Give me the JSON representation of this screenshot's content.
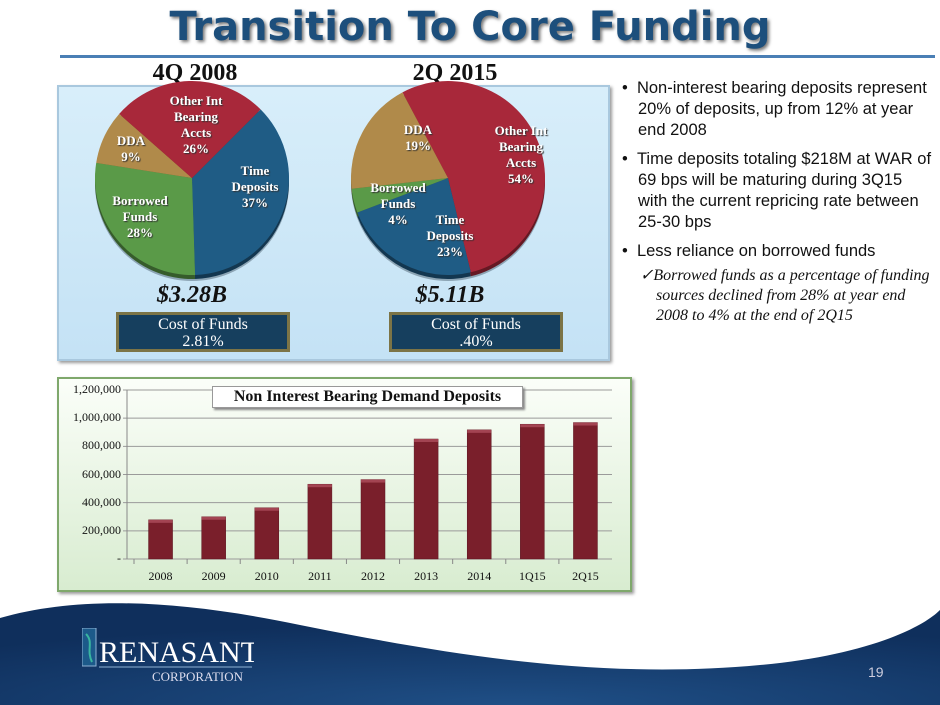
{
  "slide": {
    "title": "Transition To Core Funding",
    "page_number": "19"
  },
  "logo": {
    "name": "RENASANT",
    "sub": "CORPORATION"
  },
  "chart_data": [
    {
      "type": "pie",
      "title": "4Q 2008",
      "total": "$3.28B",
      "cost_of_funds_label": "Cost of Funds",
      "cost_of_funds_value": "2.81%",
      "slices": [
        {
          "label": "Time Deposits",
          "pct_label": "37%",
          "value": 37,
          "color": "#1f5c85"
        },
        {
          "label": "Borrowed Funds",
          "pct_label": "28%",
          "value": 28,
          "color": "#5a9a48"
        },
        {
          "label": "DDA",
          "pct_label": "9%",
          "value": 9,
          "color": "#b08a4a"
        },
        {
          "label": "Other Int Bearing Accts",
          "pct_label": "26%",
          "value": 26,
          "color": "#a8283a"
        }
      ]
    },
    {
      "type": "pie",
      "title": "2Q 2015",
      "total": "$5.11B",
      "cost_of_funds_label": "Cost of Funds",
      "cost_of_funds_value": ".40%",
      "slices": [
        {
          "label": "Other Int Bearing Accts",
          "pct_label": "54%",
          "value": 54,
          "color": "#a8283a"
        },
        {
          "label": "Time Deposits",
          "pct_label": "23%",
          "value": 23,
          "color": "#1f5c85"
        },
        {
          "label": "Borrowed Funds",
          "pct_label": "4%",
          "value": 4,
          "color": "#5a9a48"
        },
        {
          "label": "DDA",
          "pct_label": "19%",
          "value": 19,
          "color": "#b08a4a"
        }
      ]
    },
    {
      "type": "bar",
      "title": "Non Interest Bearing Demand Deposits",
      "categories": [
        "2008",
        "2009",
        "2010",
        "2011",
        "2012",
        "2013",
        "2014",
        "1Q15",
        "2Q15"
      ],
      "values": [
        278000,
        300000,
        364000,
        531000,
        564000,
        852000,
        917000,
        957000,
        969000
      ],
      "ylim": [
        0,
        1200000
      ],
      "yticks": [
        "-",
        "200,000",
        "400,000",
        "600,000",
        "800,000",
        "1,000,000",
        "1,200,000"
      ],
      "bar_color": "#7a1f2b",
      "grid": true
    }
  ],
  "bullets": [
    "Non-interest bearing deposits represent 20% of deposits, up from 12% at year end 2008",
    "Time deposits totaling $218M at WAR of 69 bps will be maturing during 3Q15  with the current repricing rate between 25-30 bps",
    "Less reliance on borrowed funds"
  ],
  "sub_bullet": "Borrowed funds as a percentage of funding sources declined from 28% at year end 2008 to 4% at the end of 2Q15"
}
